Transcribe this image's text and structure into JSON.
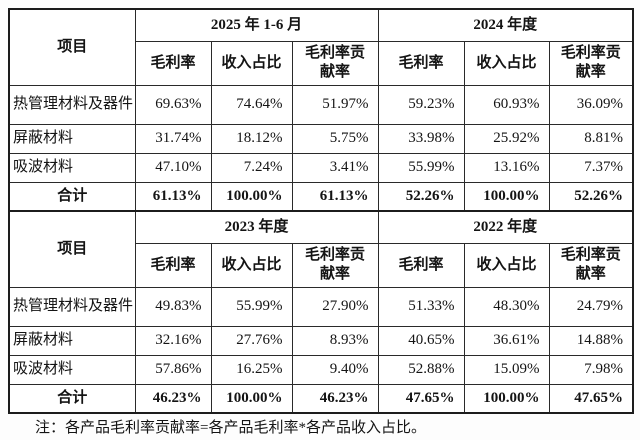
{
  "note": "注：各产品毛利率贡献率=各产品毛利率*各产品收入占比。",
  "tables": [
    {
      "item_header": "项目",
      "periods": [
        "2025 年 1-6 月",
        "2024 年度"
      ],
      "metric_headers": [
        "毛利率",
        "收入占比",
        "毛利率贡\n献率",
        "毛利率",
        "收入占比",
        "毛利率贡\n献率"
      ],
      "rows": [
        {
          "label": "热管理材料及器件",
          "total": false,
          "values": [
            "69.63%",
            "74.64%",
            "51.97%",
            "59.23%",
            "60.93%",
            "36.09%"
          ]
        },
        {
          "label": "屏蔽材料",
          "total": false,
          "values": [
            "31.74%",
            "18.12%",
            "5.75%",
            "33.98%",
            "25.92%",
            "8.81%"
          ]
        },
        {
          "label": "吸波材料",
          "total": false,
          "values": [
            "47.10%",
            "7.24%",
            "3.41%",
            "55.99%",
            "13.16%",
            "7.37%"
          ]
        },
        {
          "label": "合计",
          "total": true,
          "values": [
            "61.13%",
            "100.00%",
            "61.13%",
            "52.26%",
            "100.00%",
            "52.26%"
          ]
        }
      ]
    },
    {
      "item_header": "项目",
      "periods": [
        "2023 年度",
        "2022 年度"
      ],
      "metric_headers": [
        "毛利率",
        "收入占比",
        "毛利率贡\n献率",
        "毛利率",
        "收入占比",
        "毛利率贡\n献率"
      ],
      "rows": [
        {
          "label": "热管理材料及器件",
          "total": false,
          "values": [
            "49.83%",
            "55.99%",
            "27.90%",
            "51.33%",
            "48.30%",
            "24.79%"
          ]
        },
        {
          "label": "屏蔽材料",
          "total": false,
          "values": [
            "32.16%",
            "27.76%",
            "8.93%",
            "40.65%",
            "36.61%",
            "14.88%"
          ]
        },
        {
          "label": "吸波材料",
          "total": false,
          "values": [
            "57.86%",
            "16.25%",
            "9.40%",
            "52.88%",
            "15.09%",
            "7.98%"
          ]
        },
        {
          "label": "合计",
          "total": true,
          "values": [
            "46.23%",
            "100.00%",
            "46.23%",
            "47.65%",
            "100.00%",
            "47.65%"
          ]
        }
      ]
    }
  ]
}
